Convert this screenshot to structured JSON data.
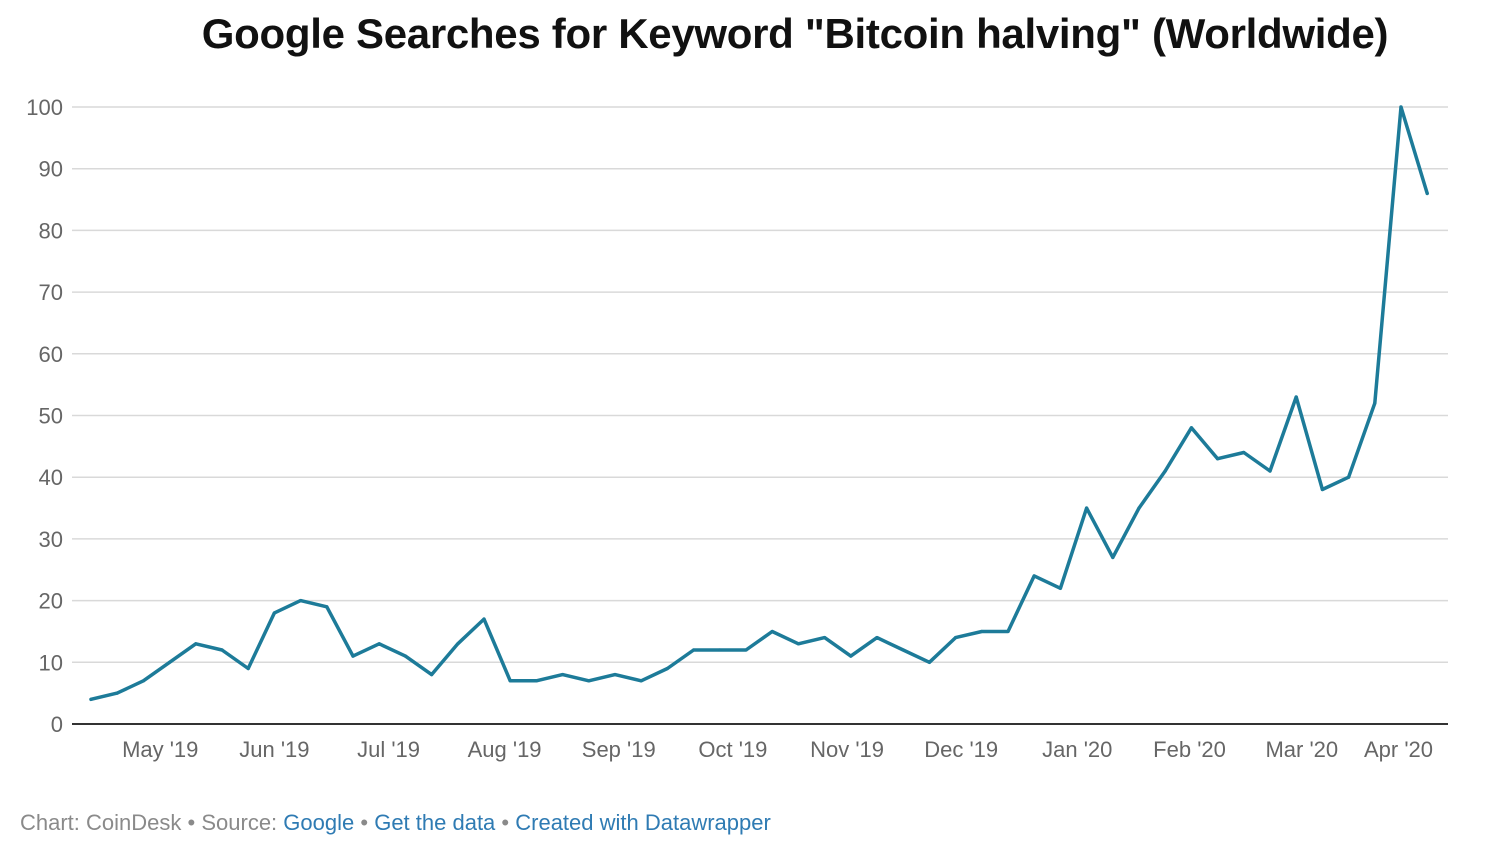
{
  "chart_data": {
    "type": "line",
    "title": "Google Searches for Keyword \"Bitcoin halving\" (Worldwide)",
    "xlabel": "",
    "ylabel": "",
    "ylim": [
      0,
      100
    ],
    "yticks": [
      0,
      10,
      20,
      30,
      40,
      50,
      60,
      70,
      80,
      90,
      100
    ],
    "grid": true,
    "line_color": "#1d7b99",
    "x_tick_labels": [
      "May '19",
      "Jun '19",
      "Jul '19",
      "Aug '19",
      "Sep '19",
      "Oct '19",
      "Nov '19",
      "Dec '19",
      "Jan '20",
      "Feb '20",
      "Mar '20",
      "Apr '20"
    ],
    "x_start": "2019-04-28",
    "x": [
      "2019-04-28",
      "2019-05-05",
      "2019-05-12",
      "2019-05-19",
      "2019-05-26",
      "2019-06-02",
      "2019-06-09",
      "2019-06-16",
      "2019-06-23",
      "2019-06-30",
      "2019-07-07",
      "2019-07-14",
      "2019-07-21",
      "2019-07-28",
      "2019-08-04",
      "2019-08-11",
      "2019-08-18",
      "2019-08-25",
      "2019-09-01",
      "2019-09-08",
      "2019-09-15",
      "2019-09-22",
      "2019-09-29",
      "2019-10-06",
      "2019-10-13",
      "2019-10-20",
      "2019-10-27",
      "2019-11-03",
      "2019-11-10",
      "2019-11-17",
      "2019-11-24",
      "2019-12-01",
      "2019-12-08",
      "2019-12-15",
      "2019-12-22",
      "2019-12-29",
      "2020-01-05",
      "2020-01-12",
      "2020-01-19",
      "2020-01-26",
      "2020-02-02",
      "2020-02-09",
      "2020-02-16",
      "2020-02-23",
      "2020-03-01",
      "2020-03-08",
      "2020-03-15",
      "2020-03-22",
      "2020-03-29",
      "2020-04-05",
      "2020-04-12",
      "2020-04-19"
    ],
    "series": [
      {
        "values": [
          4,
          5,
          7,
          10,
          13,
          12,
          9,
          18,
          20,
          19,
          11,
          13,
          11,
          8,
          13,
          17,
          7,
          7,
          8,
          7,
          8,
          7,
          9,
          12,
          12,
          12,
          15,
          13,
          14,
          11,
          14,
          12,
          10,
          14,
          15,
          15,
          24,
          22,
          35,
          27,
          35,
          41,
          48,
          43,
          44,
          41,
          53,
          38,
          40,
          52,
          100,
          86
        ]
      }
    ]
  },
  "footer": {
    "chart_prefix": "Chart: CoinDesk",
    "sep1": "•",
    "source_prefix": "Source:",
    "source_link": "Google",
    "sep2": "•",
    "get_data_link": "Get the data",
    "sep3": "•",
    "created_link": "Created with Datawrapper"
  }
}
